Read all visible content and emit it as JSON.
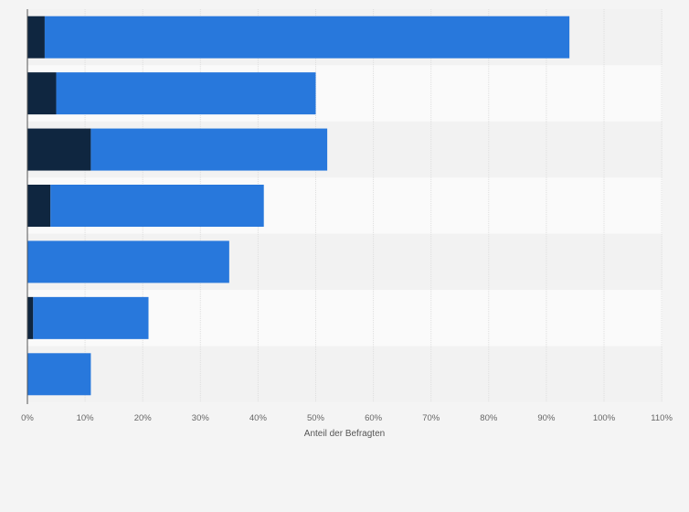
{
  "chart_data": {
    "type": "bar",
    "orientation": "horizontal",
    "stacked": true,
    "categories": [
      "",
      "",
      "",
      "",
      "",
      "",
      ""
    ],
    "series": [
      {
        "values": [
          3,
          5,
          11,
          4,
          0,
          1,
          0
        ],
        "color": "#0f2640"
      },
      {
        "values": [
          91,
          45,
          41,
          37,
          35,
          20,
          11
        ],
        "color": "#2878dc"
      }
    ],
    "xlabel": "Anteil der Befragten",
    "ylabel": "",
    "xlim": [
      0,
      110
    ],
    "x_ticks": [
      "0%",
      "10%",
      "20%",
      "30%",
      "40%",
      "50%",
      "60%",
      "70%",
      "80%",
      "90%",
      "100%",
      "110%"
    ],
    "grid": true,
    "legend": "none",
    "colors": {
      "background": "#f4f4f4",
      "band_dark": "#f2f2f2",
      "band_light": "#fafafa",
      "grid": "#dedede",
      "axis": "#555555"
    }
  }
}
